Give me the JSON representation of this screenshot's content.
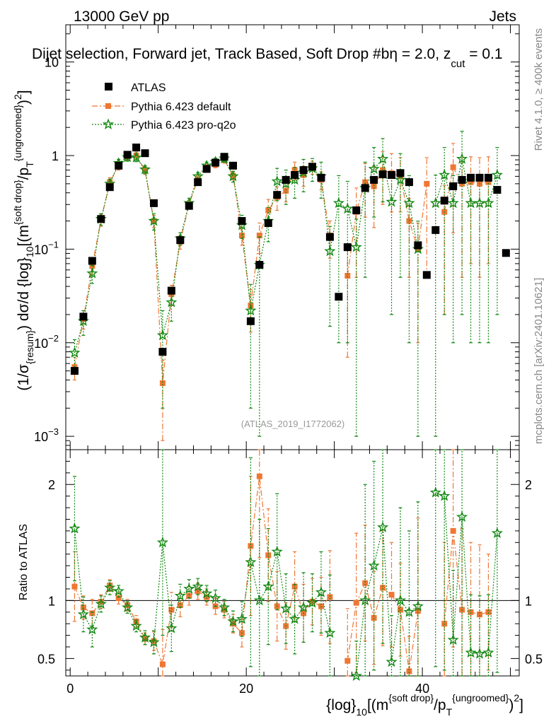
{
  "header": {
    "energy": "13000 GeV pp",
    "category": "Jets",
    "title": "Dijet selection, Forward jet, Track Based, Soft Drop #beta = 2.0, z_cut = 0.1",
    "title_display_prefix": "Dijet selection, Forward jet, Track Based, Soft Drop #b",
    "title_beta_sym": "η",
    "title_eq": " = 2.0, z",
    "title_sub": "cut",
    "title_end": " = 0.1"
  },
  "side": {
    "rivet": "Rivet 4.1.0, ≥ 400k events",
    "mcplots": "mcplots.cern.ch [arXiv:2401.10621]"
  },
  "watermark": "(ATLAS_2019_I1772062)",
  "ylabel_main": {
    "p1": "(1/σ",
    "p1sub": "{resum}",
    "p2": ") dσ/d {log}",
    "p2sub": "10",
    "p3": "[(m",
    "p3sup": "{soft drop}",
    "p4": "/p",
    "p4sub": "T",
    "p4sup": "{ungroomed}",
    "p5": ")",
    "p5sup": "2",
    "p6": "]"
  },
  "ylabel_ratio": "Ratio to ATLAS",
  "xlabel": {
    "p1": "{log}",
    "p1sub": "10",
    "p2": "[(m",
    "p2sup": "{soft drop}",
    "p3": "/p",
    "p3sub": "T",
    "p3sup": "{ungroomed}",
    "p4": ")",
    "p4sup": "2",
    "p5": "]"
  },
  "legend": {
    "atlas": "ATLAS",
    "default": "Pythia 6.423 default",
    "pro": "Pythia 6.423 pro-q2o"
  },
  "colors": {
    "atlas": "#000000",
    "default": "#ee7733",
    "pro": "#118811"
  },
  "chart_data": {
    "type": "scatter",
    "xlim": [
      -0.5,
      51
    ],
    "main": {
      "scale": "log",
      "ylim": [
        0.00072,
        25
      ],
      "yticks": [
        {
          "v": 0.001,
          "label": "10^-3"
        },
        {
          "v": 0.01,
          "label": "10^-2"
        },
        {
          "v": 0.1,
          "label": "10^-1"
        },
        {
          "v": 1,
          "label": "1"
        },
        {
          "v": 10,
          "label": "10"
        }
      ]
    },
    "ratio": {
      "ylim": [
        0.35,
        2.3
      ],
      "yticks": [
        {
          "v": 0.5,
          "label": "0.5"
        },
        {
          "v": 1,
          "label": "1"
        },
        {
          "v": 2,
          "label": "2"
        }
      ]
    },
    "xticks": [
      0,
      20,
      40
    ],
    "x": [
      0.5,
      1.5,
      2.5,
      3.5,
      4.5,
      5.5,
      6.5,
      7.5,
      8.5,
      9.5,
      10.5,
      11.5,
      12.5,
      13.5,
      14.5,
      15.5,
      16.5,
      17.5,
      18.5,
      19.5,
      20.5,
      21.5,
      22.5,
      23.5,
      24.5,
      25.5,
      26.5,
      27.5,
      28.5,
      29.5,
      30.5,
      31.5,
      32.5,
      33.5,
      34.5,
      35.5,
      36.5,
      37.5,
      38.5,
      39.5,
      40.5,
      41.5,
      42.5,
      43.5,
      44.5,
      45.5,
      46.5,
      47.5,
      48.5,
      49.5
    ],
    "series": [
      {
        "name": "ATLAS",
        "marker": "square",
        "values": [
          0.005,
          0.019,
          0.075,
          0.21,
          0.46,
          0.78,
          1.02,
          1.22,
          1.06,
          0.31,
          0.008,
          0.036,
          0.125,
          0.29,
          0.52,
          0.72,
          0.84,
          0.97,
          0.78,
          0.2,
          0.017,
          0.068,
          0.19,
          0.38,
          0.55,
          0.62,
          0.7,
          0.76,
          0.58,
          0.135,
          0.031,
          0.105,
          0.26,
          0.45,
          0.55,
          0.63,
          0.62,
          0.65,
          0.52,
          0.11,
          0.053,
          0.16,
          0.33,
          0.47,
          0.55,
          0.58,
          0.58,
          0.58,
          0.43,
          0.091
        ]
      },
      {
        "name": "Pythia 6.423 default",
        "marker": "square",
        "style": "dashdot",
        "values": [
          0.0055,
          0.018,
          0.066,
          0.205,
          0.52,
          0.78,
          0.98,
          1.0,
          0.7,
          0.2,
          0.0037,
          0.033,
          0.12,
          0.3,
          0.56,
          0.74,
          0.8,
          0.9,
          0.61,
          0.14,
          0.025,
          0.14,
          0.26,
          0.36,
          0.42,
          0.7,
          0.62,
          0.75,
          0.55,
          0.14,
          null,
          0.052,
          0.25,
          0.52,
          0.47,
          0.7,
          0.65,
          0.6,
          0.2,
          0.1,
          0.5,
          null,
          0.25,
          0.75,
          0.5,
          0.52,
          0.5,
          0.52,
          null,
          null
        ],
        "errors": [
          0.0015,
          0.004,
          0.012,
          0.03,
          0.06,
          0.08,
          0.09,
          0.09,
          0.07,
          0.03,
          0.0028,
          0.008,
          0.02,
          0.03,
          0.05,
          0.06,
          0.06,
          0.07,
          0.06,
          0.03,
          0.012,
          0.05,
          0.08,
          0.1,
          0.1,
          0.15,
          0.15,
          0.12,
          0.12,
          0.06,
          null,
          0.045,
          0.2,
          0.3,
          0.3,
          0.4,
          0.4,
          0.35,
          0.15,
          0.09,
          0.45,
          null,
          0.23,
          0.6,
          0.45,
          0.45,
          0.45,
          0.45,
          null,
          null
        ]
      },
      {
        "name": "Pythia 6.423 pro-q2o",
        "marker": "star",
        "style": "dotted",
        "values": [
          0.0078,
          0.017,
          0.055,
          0.21,
          0.5,
          0.83,
          0.96,
          0.95,
          0.71,
          0.2,
          0.012,
          0.027,
          0.13,
          0.31,
          0.6,
          0.78,
          0.86,
          0.93,
          0.6,
          0.18,
          0.022,
          0.068,
          0.2,
          0.53,
          0.5,
          0.55,
          0.66,
          0.73,
          0.6,
          0.095,
          0.31,
          0.27,
          0.105,
          0.45,
          0.72,
          0.92,
          0.32,
          0.55,
          0.31,
          0.1,
          null,
          0.31,
          0.62,
          0.31,
          0.92,
          0.31,
          0.31,
          0.31,
          0.62,
          null
        ],
        "errors": [
          0.003,
          0.005,
          0.012,
          0.03,
          0.06,
          0.08,
          0.09,
          0.09,
          0.07,
          0.04,
          0.01,
          0.01,
          0.02,
          0.04,
          0.06,
          0.07,
          0.08,
          0.08,
          0.08,
          0.05,
          0.02,
          0.067,
          0.08,
          0.2,
          0.2,
          0.2,
          0.25,
          0.2,
          0.25,
          0.08,
          0.3,
          0.26,
          0.104,
          0.4,
          0.5,
          0.6,
          0.3,
          0.5,
          0.3,
          0.099,
          null,
          0.309,
          0.6,
          0.3,
          0.9,
          0.3,
          0.3,
          0.3,
          0.6,
          null
        ]
      }
    ],
    "ratio_series": [
      {
        "name": "Pythia 6.423 default",
        "values": [
          1.12,
          0.94,
          0.89,
          0.99,
          1.13,
          1.02,
          0.96,
          0.82,
          0.67,
          0.65,
          0.45,
          0.92,
          0.96,
          1.04,
          1.08,
          1.03,
          0.95,
          0.92,
          0.8,
          0.72,
          1.47,
          2.07,
          1.39,
          0.95,
          0.78,
          1.12,
          0.89,
          0.99,
          0.95,
          1.03,
          null,
          0.48,
          0.98,
          1.15,
          0.85,
          1.11,
          1.05,
          0.92,
          0.39,
          0.91,
          null,
          null,
          0.8,
          1.6,
          0.92,
          0.9,
          0.88,
          0.9,
          null,
          null
        ],
        "errors": [
          0.3,
          0.1,
          0.12,
          0.06,
          0.05,
          0.05,
          0.05,
          0.05,
          0.05,
          0.08,
          0.3,
          0.15,
          0.1,
          0.08,
          0.07,
          0.07,
          0.07,
          0.07,
          0.08,
          0.12,
          0.6,
          0.7,
          0.4,
          0.3,
          0.2,
          0.3,
          0.25,
          0.2,
          0.25,
          0.4,
          null,
          0.45,
          0.6,
          0.5,
          0.4,
          0.5,
          0.45,
          0.4,
          0.3,
          0.8,
          null,
          null,
          0.7,
          1.0,
          0.7,
          0.6,
          0.6,
          0.5,
          null,
          null
        ]
      },
      {
        "name": "Pythia 6.423 pro-q2o",
        "values": [
          1.62,
          0.88,
          0.75,
          0.97,
          1.11,
          1.08,
          0.94,
          0.78,
          0.68,
          0.64,
          1.5,
          0.76,
          1.04,
          1.1,
          1.12,
          1.06,
          1.02,
          0.94,
          0.82,
          0.84,
          1.33,
          1.0,
          1.12,
          1.42,
          0.93,
          0.84,
          0.94,
          0.98,
          1.07,
          0.72,
          null,
          null,
          0.35,
          1.0,
          1.3,
          1.63,
          0.47,
          1.0,
          0.9,
          0.95,
          null,
          1.93,
          1.9,
          0.66,
          1.72,
          0.55,
          0.54,
          0.55,
          1.58,
          null
        ],
        "errors": [
          0.45,
          0.15,
          0.15,
          0.07,
          0.06,
          0.05,
          0.05,
          0.05,
          0.06,
          0.1,
          0.8,
          0.2,
          0.1,
          0.08,
          0.07,
          0.07,
          0.07,
          0.07,
          0.09,
          0.15,
          0.9,
          0.7,
          0.5,
          0.5,
          0.3,
          0.3,
          0.3,
          0.25,
          0.35,
          0.5,
          null,
          null,
          0.3,
          1.0,
          0.9,
          1.0,
          0.4,
          0.8,
          0.7,
          0.9,
          null,
          1.5,
          1.5,
          0.6,
          1.5,
          0.5,
          0.5,
          0.5,
          1.2,
          null
        ]
      }
    ]
  }
}
